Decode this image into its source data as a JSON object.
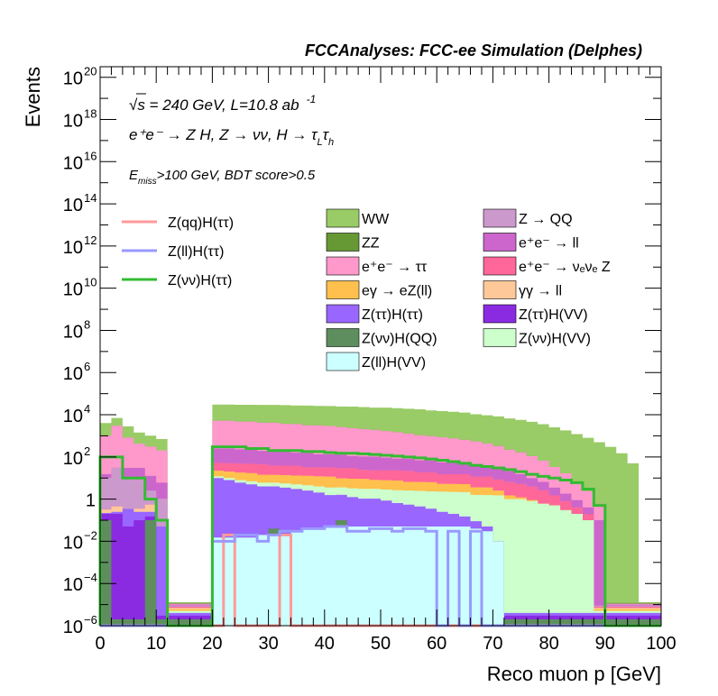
{
  "chart_data": {
    "type": "area",
    "title": "FCCAnalyses: FCC-ee Simulation (Delphes)",
    "xlabel": "Reco muon p [GeV]",
    "ylabel": "Events",
    "xlim": [
      0,
      100
    ],
    "ylim_log10": [
      -6,
      20.5
    ],
    "yscale": "log",
    "x_ticks": [
      0,
      10,
      20,
      30,
      40,
      50,
      60,
      70,
      80,
      90,
      100
    ],
    "y_ticks": [
      {
        "exp": -6,
        "label": "10",
        "sup": "−6"
      },
      {
        "exp": -4,
        "label": "10",
        "sup": "−4"
      },
      {
        "exp": -2,
        "label": "10",
        "sup": "−2"
      },
      {
        "exp": 0,
        "label": "1",
        "sup": ""
      },
      {
        "exp": 2,
        "label": "10",
        "sup": "2"
      },
      {
        "exp": 4,
        "label": "10",
        "sup": "4"
      },
      {
        "exp": 6,
        "label": "10",
        "sup": "6"
      },
      {
        "exp": 8,
        "label": "10",
        "sup": "8"
      },
      {
        "exp": 10,
        "label": "10",
        "sup": "10"
      },
      {
        "exp": 12,
        "label": "10",
        "sup": "12"
      },
      {
        "exp": 14,
        "label": "10",
        "sup": "14"
      },
      {
        "exp": 16,
        "label": "10",
        "sup": "16"
      },
      {
        "exp": 18,
        "label": "10",
        "sup": "18"
      },
      {
        "exp": 20,
        "label": "10",
        "sup": "20"
      }
    ],
    "bin_edges": [
      0,
      2,
      4,
      6,
      8,
      10,
      12,
      14,
      16,
      18,
      20,
      22,
      24,
      26,
      28,
      30,
      32,
      34,
      36,
      38,
      40,
      42,
      44,
      46,
      48,
      50,
      52,
      54,
      56,
      58,
      60,
      62,
      64,
      66,
      68,
      70,
      72,
      74,
      76,
      78,
      80,
      82,
      84,
      86,
      88,
      90,
      92,
      94,
      96,
      98,
      100
    ],
    "annotations": {
      "sqrt_s": "√s = 240 GeV, L=10.8 ab",
      "lumi_sup": "-1",
      "process": "e⁺e⁻ → Z H, Z → νν, H → τ",
      "process_sub1": "L",
      "process_tau2": "τ",
      "process_sub2": "h",
      "cuts_e": "E",
      "cuts_sub": "miss",
      "cuts_rest": ">100 GeV, BDT score>0.5"
    },
    "stack_series": [
      {
        "name": "Z(ll)H(VV)",
        "color": "#ccffff",
        "values": [
          1e-06,
          1e-06,
          1e-06,
          1e-06,
          1e-06,
          1e-06,
          1e-06,
          1e-06,
          1e-06,
          1e-06,
          0.015,
          0.015,
          0.015,
          0.015,
          0.02,
          0.02,
          0.02,
          0.03,
          0.04,
          0.04,
          0.05,
          0.05,
          0.05,
          0.05,
          0.05,
          0.05,
          0.05,
          0.05,
          0.05,
          0.05,
          0.05,
          0.05,
          0.05,
          0.04,
          0.03,
          0.01,
          1e-06,
          1e-06,
          1e-06,
          1e-06,
          1e-06,
          1e-06,
          1e-06,
          1e-06,
          1e-06,
          1e-06,
          1e-06,
          1e-06,
          1e-06,
          1e-06
        ]
      },
      {
        "name": "Z(νν)H(QQ)",
        "color": "#5e8e5e",
        "values": [
          0.1,
          1e-06,
          1e-06,
          1e-06,
          0.1,
          1e-06,
          1e-06,
          1e-06,
          1e-06,
          1e-06,
          1e-06,
          1e-06,
          1e-06,
          1e-06,
          1e-06,
          0.02,
          1e-06,
          1e-06,
          1e-06,
          1e-06,
          1e-06,
          0.05,
          1e-06,
          1e-06,
          1e-06,
          1e-06,
          1e-06,
          1e-06,
          1e-06,
          1e-06,
          1e-06,
          1e-06,
          1e-06,
          1e-06,
          1e-06,
          1e-06,
          1e-06,
          1e-06,
          1e-06,
          1e-06,
          1e-06,
          1e-06,
          1e-06,
          1e-06,
          1e-06,
          1e-06,
          1e-06,
          1e-06,
          1e-06,
          1e-06
        ]
      },
      {
        "name": "Z(ττ)H(VV)",
        "color": "#8a2be2",
        "values": [
          0.1,
          0.2,
          0.05,
          0.1,
          0.05,
          1e-06,
          1e-06,
          1e-06,
          1e-06,
          1e-06,
          1e-06,
          1e-06,
          1e-06,
          1e-06,
          1e-06,
          1e-06,
          1e-06,
          1e-06,
          1e-06,
          1e-06,
          1e-06,
          1e-06,
          1e-06,
          1e-06,
          1e-06,
          1e-06,
          1e-06,
          1e-06,
          1e-06,
          1e-06,
          1e-06,
          1e-06,
          1e-06,
          1e-06,
          1e-06,
          1e-06,
          1e-06,
          1e-06,
          1e-06,
          1e-06,
          1e-06,
          1e-06,
          1e-06,
          1e-06,
          1e-06,
          1e-06,
          1e-06,
          1e-06,
          1e-06,
          1e-06
        ]
      },
      {
        "name": "Z(ττ)H(ττ)",
        "color": "#9966ff",
        "values": [
          0.02,
          0.05,
          0.3,
          0.15,
          0.1,
          0.05,
          1e-06,
          1e-06,
          1e-06,
          1e-06,
          10,
          8,
          6,
          5,
          4,
          4,
          3.5,
          3,
          2.5,
          2,
          1.5,
          1.5,
          1.2,
          1,
          1,
          0.8,
          0.6,
          0.5,
          0.4,
          0.3,
          0.2,
          0.15,
          0.1,
          0.05,
          0.02,
          1e-06,
          1e-06,
          1e-06,
          1e-06,
          1e-06,
          1e-06,
          1e-06,
          1e-06,
          1e-06,
          1e-06,
          1e-06,
          1e-06,
          1e-06,
          1e-06,
          1e-06
        ]
      },
      {
        "name": "Z(νν)H(VV)",
        "color": "#ccffcc",
        "values": [
          1e-06,
          1e-06,
          1e-06,
          1e-06,
          1e-06,
          1e-06,
          1e-06,
          1e-06,
          1e-06,
          1e-06,
          2,
          2,
          2,
          2,
          2,
          2,
          2,
          2,
          2,
          2,
          2,
          2,
          2,
          2,
          2,
          2,
          2,
          2,
          2,
          2,
          2,
          2,
          2,
          1.5,
          1.5,
          1.5,
          1,
          1,
          0.8,
          0.6,
          0.5,
          0.3,
          0.2,
          0.1,
          1e-06,
          1e-06,
          1e-06,
          1e-06,
          1e-06,
          1e-06
        ]
      },
      {
        "name": "eγ → eZ(ll)",
        "color": "#ffc04d",
        "values": [
          1e-06,
          1e-06,
          1e-06,
          1e-06,
          1e-06,
          1e-06,
          1e-06,
          1e-06,
          1e-06,
          1e-06,
          10,
          10,
          10,
          10,
          8,
          8,
          8,
          8,
          8,
          8,
          8,
          6,
          6,
          6,
          5,
          5,
          5,
          4,
          4,
          4,
          3,
          3,
          3,
          2,
          2,
          1,
          0.5,
          0.2,
          0.1,
          1e-06,
          1e-06,
          1e-06,
          1e-06,
          1e-06,
          1e-06,
          1e-06,
          1e-06,
          1e-06,
          1e-06,
          1e-06
        ]
      },
      {
        "name": "γγ → ll",
        "color": "#ffc899",
        "values": [
          0.1,
          0.2,
          1e-06,
          0.1,
          0.3,
          1e-06,
          1e-06,
          1e-06,
          1e-06,
          1e-06,
          1e-06,
          1e-06,
          1e-06,
          1e-06,
          1e-06,
          1e-06,
          1e-06,
          1e-06,
          1e-06,
          1e-06,
          1e-06,
          1e-06,
          1e-06,
          1e-06,
          1e-06,
          1e-06,
          1e-06,
          1e-06,
          1e-06,
          1e-06,
          1e-06,
          1e-06,
          1e-06,
          1e-06,
          1e-06,
          1e-06,
          1e-06,
          1e-06,
          1e-06,
          1e-06,
          1e-06,
          1e-06,
          1e-06,
          1e-06,
          1e-06,
          1e-06,
          1e-06,
          1e-06,
          1e-06,
          1e-06
        ]
      },
      {
        "name": "e⁺e⁻ → νₑνₑ Z",
        "color": "#ff6699",
        "values": [
          1e-06,
          1e-06,
          1e-06,
          1e-06,
          1e-06,
          1e-06,
          1e-06,
          1e-06,
          1e-06,
          1e-06,
          30,
          30,
          30,
          30,
          30,
          25,
          25,
          25,
          20,
          20,
          20,
          20,
          20,
          15,
          15,
          15,
          15,
          15,
          12,
          12,
          10,
          10,
          10,
          8,
          8,
          6,
          5,
          4,
          3,
          2,
          1,
          0.5,
          0.2,
          0.1,
          1e-06,
          1e-06,
          1e-06,
          1e-06,
          1e-06,
          1e-06
        ]
      },
      {
        "name": "Z → QQ",
        "color": "#cc99cc",
        "values": [
          10,
          30,
          10,
          10,
          2,
          1,
          1e-06,
          1e-06,
          1e-06,
          1e-06,
          1e-06,
          1e-06,
          1e-06,
          1e-06,
          1e-06,
          1e-06,
          1e-06,
          1e-06,
          1e-06,
          1e-06,
          1e-06,
          1e-06,
          1e-06,
          1e-06,
          1e-06,
          1e-06,
          1e-06,
          1e-06,
          1e-06,
          1e-06,
          1e-06,
          1e-06,
          1e-06,
          1e-06,
          1e-06,
          1e-06,
          1e-06,
          1e-06,
          1e-06,
          1e-06,
          1e-06,
          1e-06,
          1e-06,
          1e-06,
          1e-06,
          1e-06,
          1e-06,
          1e-06,
          1e-06,
          1e-06
        ]
      },
      {
        "name": "e⁺e⁻ → ll",
        "color": "#cc66cc",
        "values": [
          5,
          1e-06,
          20,
          20,
          10,
          5,
          1e-06,
          1e-06,
          1e-06,
          1e-06,
          200,
          200,
          180,
          180,
          150,
          150,
          150,
          120,
          120,
          100,
          100,
          100,
          80,
          80,
          80,
          70,
          60,
          60,
          50,
          50,
          40,
          40,
          30,
          30,
          25,
          20,
          15,
          10,
          6,
          4,
          2,
          1,
          0.5,
          0.2,
          0.1,
          1e-06,
          1e-06,
          1e-06,
          1e-06,
          1e-06
        ]
      },
      {
        "name": "e⁺e⁻ → ττ",
        "color": "#ff99cc",
        "values": [
          1000,
          3000,
          800,
          400,
          300,
          200,
          1e-06,
          1e-06,
          1e-06,
          1e-06,
          5000,
          5000,
          4500,
          4500,
          4000,
          4000,
          3500,
          3500,
          3000,
          3000,
          2800,
          2500,
          2200,
          2000,
          1800,
          1600,
          1400,
          1200,
          1000,
          900,
          800,
          700,
          600,
          500,
          400,
          300,
          200,
          150,
          100,
          60,
          30,
          15,
          6,
          2,
          0.5,
          1e-06,
          1e-06,
          1e-06,
          1e-06,
          1e-06
        ]
      },
      {
        "name": "ZZ",
        "color": "#669933",
        "values": [
          0.05,
          1e-06,
          1e-06,
          1e-06,
          0.05,
          1e-06,
          1e-06,
          1e-06,
          1e-06,
          1e-06,
          1e-06,
          1e-06,
          1e-06,
          1e-06,
          1e-06,
          1e-06,
          1e-06,
          1e-06,
          1e-06,
          1e-06,
          1e-06,
          1e-06,
          1e-06,
          1e-06,
          1e-06,
          1e-06,
          1e-06,
          1e-06,
          1e-06,
          1e-06,
          1e-06,
          1e-06,
          1e-06,
          1e-06,
          1e-06,
          1e-06,
          1e-06,
          1e-06,
          1e-06,
          1e-06,
          1e-06,
          1e-06,
          1e-06,
          1e-06,
          1e-06,
          1e-06,
          1e-06,
          1e-06,
          1e-06,
          1e-06
        ]
      },
      {
        "name": "WW",
        "color": "#99cc66",
        "values": [
          3000,
          4000,
          2000,
          1000,
          700,
          500,
          1e-06,
          1e-06,
          1e-06,
          1e-06,
          25000,
          25000,
          25000,
          25000,
          25000,
          25000,
          25000,
          24000,
          24000,
          23000,
          23000,
          22000,
          22000,
          21000,
          20000,
          20000,
          19000,
          18000,
          17000,
          15000,
          14000,
          13000,
          12000,
          10000,
          9000,
          8000,
          6500,
          5500,
          4500,
          3500,
          2500,
          1800,
          1200,
          800,
          500,
          300,
          150,
          50,
          1e-06,
          1e-06
        ]
      }
    ],
    "line_series": [
      {
        "name": "Z(qq)H(ττ)",
        "color": "#ff9999",
        "values": [
          1e-06,
          1e-06,
          1e-06,
          1e-06,
          1e-06,
          1e-06,
          1e-06,
          1e-06,
          1e-06,
          1e-06,
          1e-06,
          0.02,
          1e-06,
          1e-06,
          1e-06,
          1e-06,
          0.02,
          1e-06,
          1e-06,
          1e-06,
          1e-06,
          1e-06,
          1e-06,
          1e-06,
          1e-06,
          1e-06,
          1e-06,
          1e-06,
          1e-06,
          1e-06,
          1e-06,
          1e-06,
          1e-06,
          1e-06,
          1e-06,
          1e-06,
          1e-06,
          1e-06,
          1e-06,
          1e-06,
          1e-06,
          1e-06,
          1e-06,
          1e-06,
          1e-06,
          1e-06,
          1e-06,
          1e-06,
          1e-06,
          1e-06
        ]
      },
      {
        "name": "Z(ll)H(ττ)",
        "color": "#9999ff",
        "values": [
          1e-06,
          1e-06,
          1e-06,
          1e-06,
          1e-06,
          1e-06,
          1e-06,
          1e-06,
          1e-06,
          1e-06,
          0.01,
          0.01,
          0.02,
          0.02,
          0.01,
          0.02,
          0.03,
          0.03,
          0.04,
          0.04,
          0.05,
          0.05,
          0.03,
          0.03,
          0.04,
          0.04,
          0.03,
          0.04,
          0.04,
          0.03,
          1e-06,
          0.03,
          1e-06,
          0.03,
          1e-06,
          1e-06,
          1e-06,
          1e-06,
          1e-06,
          1e-06,
          1e-06,
          1e-06,
          1e-06,
          1e-06,
          1e-06,
          1e-06,
          1e-06,
          1e-06,
          1e-06,
          1e-06
        ]
      },
      {
        "name": "Z(νν)H(ττ)",
        "color": "#33bb33",
        "values": [
          100,
          100,
          10,
          10,
          1,
          0.1,
          1e-06,
          1e-06,
          1e-06,
          1e-06,
          300,
          300,
          300,
          250,
          250,
          200,
          200,
          200,
          180,
          180,
          160,
          150,
          150,
          140,
          130,
          120,
          110,
          100,
          90,
          80,
          70,
          60,
          50,
          40,
          35,
          30,
          25,
          20,
          15,
          12,
          10,
          8,
          6,
          3,
          0.5,
          1e-06,
          1e-06,
          1e-06,
          1e-06,
          1e-06
        ]
      }
    ],
    "legend_lines": [
      "Z(qq)H(ττ)",
      "Z(ll)H(ττ)",
      "Z(νν)H(ττ)"
    ],
    "legend_col1": [
      "WW",
      "ZZ",
      "e⁺e⁻ → ττ",
      "eγ → eZ(ll)",
      "Z(ττ)H(ττ)",
      "Z(νν)H(QQ)",
      "Z(ll)H(VV)"
    ],
    "legend_col2": [
      "Z → QQ",
      "e⁺e⁻ → ll",
      "e⁺e⁻ → νₑνₑ Z",
      "γγ → ll",
      "Z(ττ)H(VV)",
      "Z(νν)H(VV)"
    ],
    "legend_placement": "top-right",
    "grid": false
  }
}
